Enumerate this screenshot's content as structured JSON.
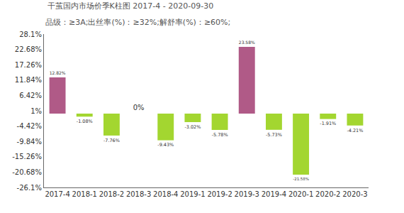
{
  "chart_data": {
    "type": "bar",
    "title": "干茧国内市场价季K柱图 2017-4 - 2020-09-30",
    "subtitle": "品级：≥3A;出丝率(%)：≥32%;解舒率(%)：≥60%;",
    "categories": [
      "2017-4",
      "2018-1",
      "2018-2",
      "2018-3",
      "2018-4",
      "2019-1",
      "2019-2",
      "2019-3",
      "2019-4",
      "2020-1",
      "2020-2",
      "2020-3"
    ],
    "values": [
      12.82,
      -1.08,
      -7.76,
      0,
      -9.43,
      -3.02,
      -5.78,
      23.58,
      -5.73,
      -21.58,
      -1.91,
      -4.21
    ],
    "value_labels": [
      "12.82%",
      "-1.08%",
      "-7.76%",
      "0%",
      "-9.43%",
      "-3.02%",
      "-5.78%",
      "23.58%",
      "-5.73%",
      "-21.58%",
      "-1.91%",
      "-4.21%"
    ],
    "colors": [
      "#b05a87",
      "#a3d630",
      "#a3d630",
      "#b05a87",
      "#a3d630",
      "#a3d630",
      "#a3d630",
      "#b05a87",
      "#a3d630",
      "#a3d630",
      "#a3d630",
      "#a3d630"
    ],
    "data_labels": true,
    "grid": false,
    "ylim": [
      -26.1,
      28.1
    ],
    "yticks": [
      {
        "value": 28.1,
        "label": "28.1%"
      },
      {
        "value": 22.68,
        "label": "22.68%"
      },
      {
        "value": 17.26,
        "label": "17.26%"
      },
      {
        "value": 11.84,
        "label": "11.84%"
      },
      {
        "value": 6.42,
        "label": "6.42%"
      },
      {
        "value": 1,
        "label": "1%"
      },
      {
        "value": -4.42,
        "label": "-4.42%"
      },
      {
        "value": -9.84,
        "label": "-9.84%"
      },
      {
        "value": -15.26,
        "label": "-15.26%"
      },
      {
        "value": -20.68,
        "label": "-20.68%"
      },
      {
        "value": -26.1,
        "label": "-26.1%"
      }
    ]
  }
}
